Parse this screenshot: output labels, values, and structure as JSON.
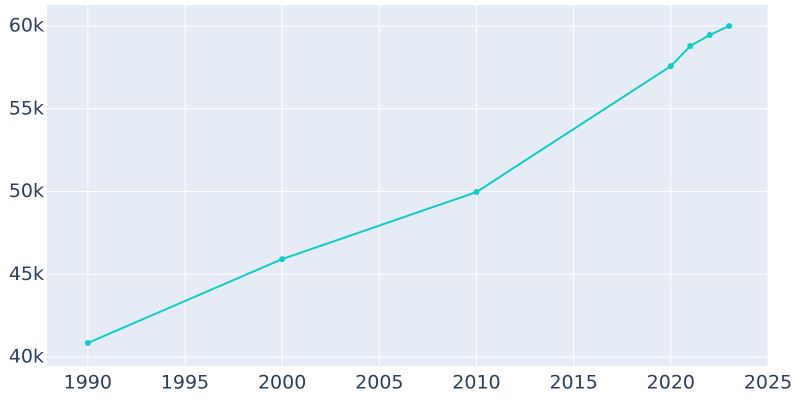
{
  "chart_data": {
    "type": "line",
    "x": [
      1990,
      2000,
      2010,
      2020,
      2021,
      2022,
      2023
    ],
    "series": [
      {
        "color": "#11cbcb",
        "values": [
          40850,
          45920,
          49970,
          57580,
          58790,
          59460,
          60000
        ]
      }
    ],
    "xlim": [
      1987.9,
      2025
    ],
    "xticks": [
      1990,
      1995,
      2000,
      2005,
      2010,
      2015,
      2020,
      2025
    ],
    "ylim": [
      39460,
      61270
    ],
    "yticks": [
      {
        "value": 40000,
        "label": "40k"
      },
      {
        "value": 45000,
        "label": "45k"
      },
      {
        "value": 50000,
        "label": "50k"
      },
      {
        "value": 55000,
        "label": "55k"
      },
      {
        "value": 60000,
        "label": "60k"
      }
    ],
    "grid": true
  }
}
